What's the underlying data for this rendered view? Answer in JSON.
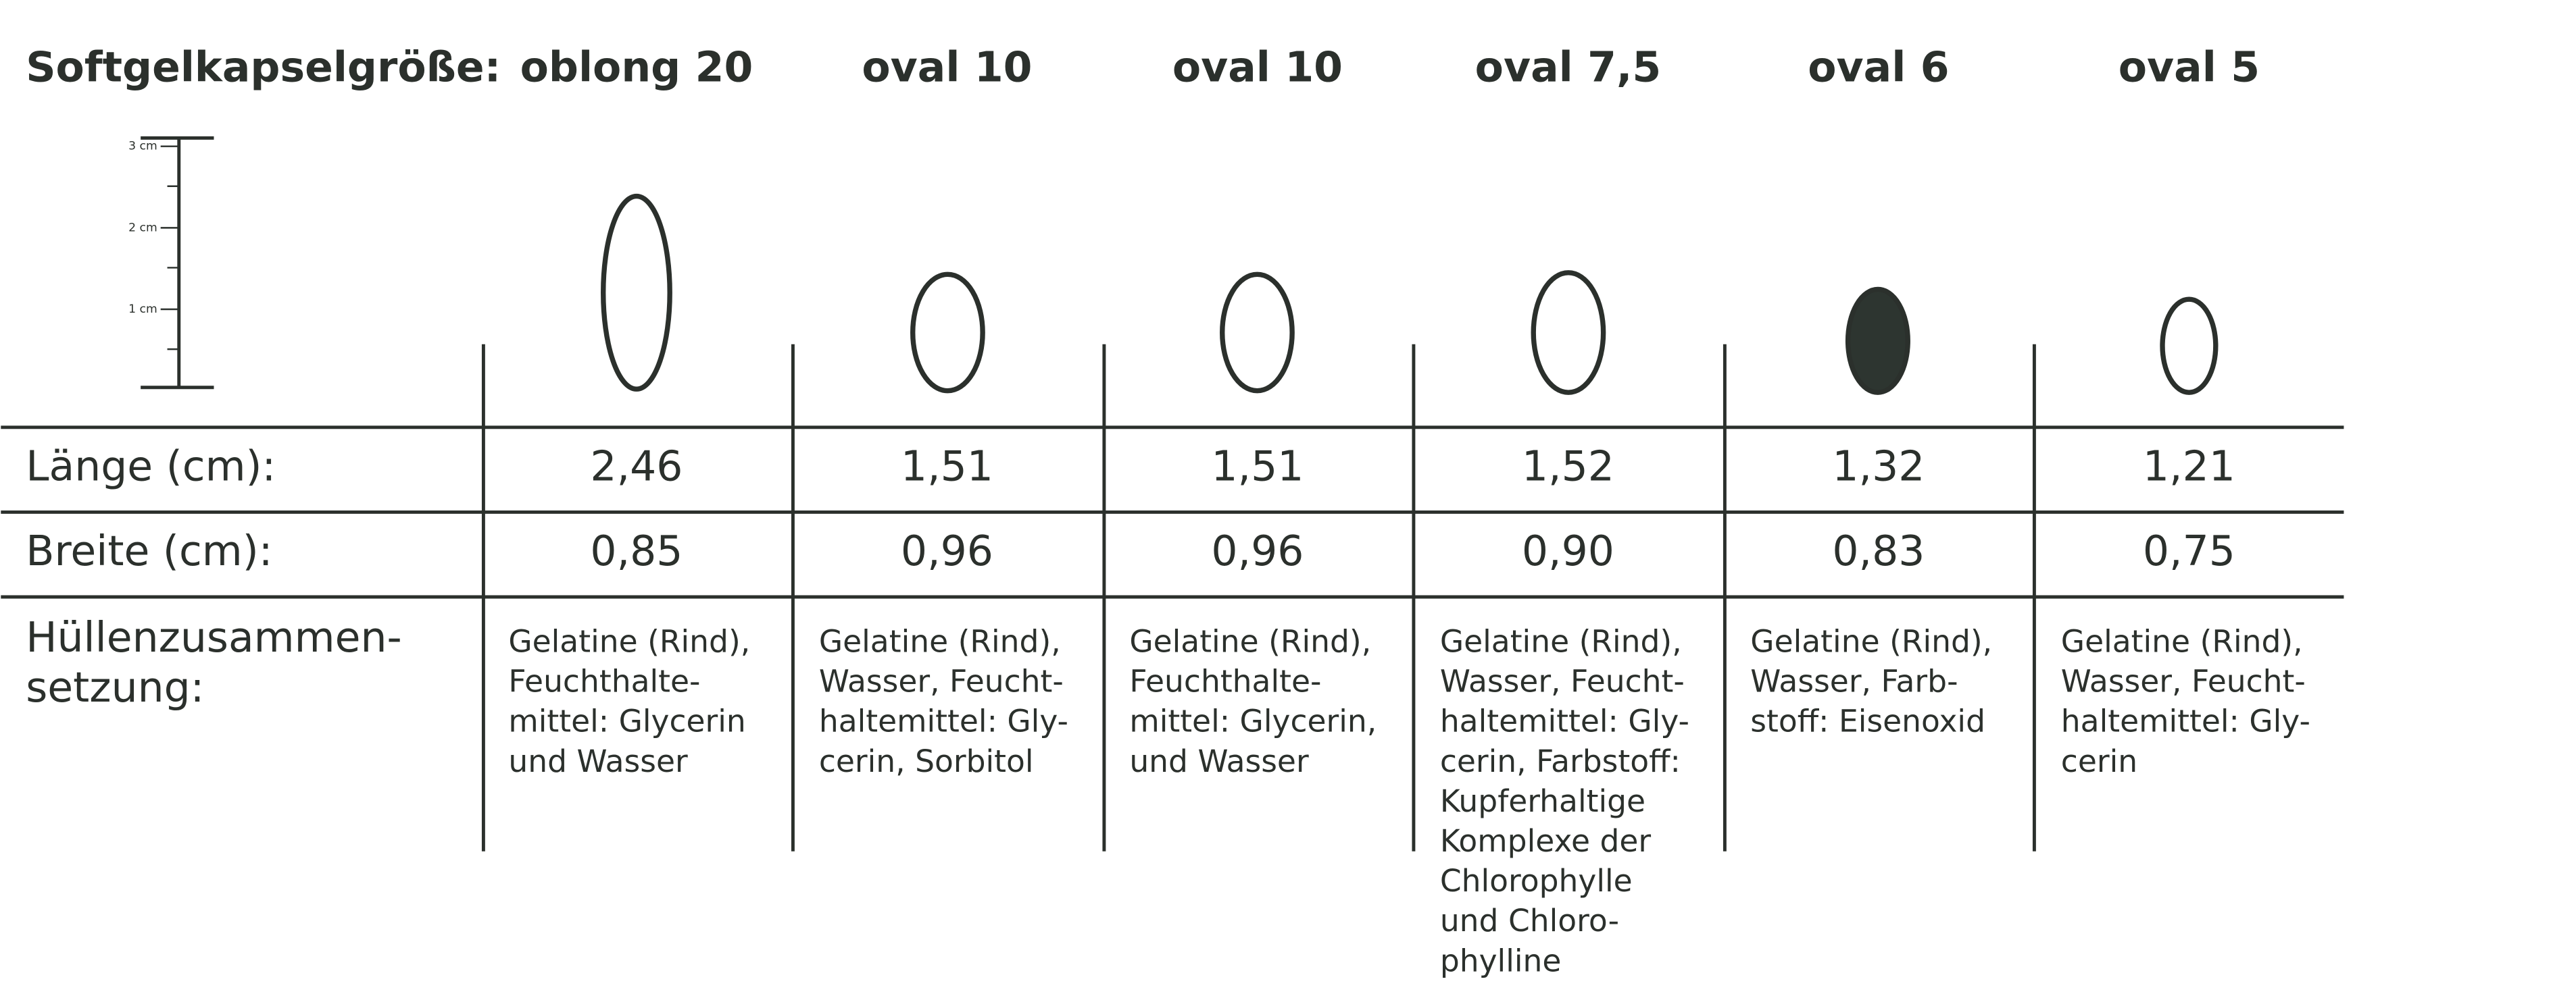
{
  "header": {
    "title": "Softgelkapselgröße:"
  },
  "scale": {
    "ticks": [
      "3 cm",
      "2 cm",
      "1 cm"
    ]
  },
  "table": {
    "columns": [
      "oblong 20",
      "oval 10",
      "oval 10",
      "oval 7,5",
      "oval 6",
      "oval 5"
    ],
    "row_labels": {
      "length": "Länge (cm):",
      "width": "Breite (cm):",
      "composition": [
        "Hüllenzusammen-",
        "setzung:"
      ]
    },
    "length": [
      "2,46",
      "1,51",
      "1,51",
      "1,52",
      "1,32",
      "1,21"
    ],
    "width": [
      "0,85",
      "0,96",
      "0,96",
      "0,90",
      "0,83",
      "0,75"
    ],
    "composition": [
      [
        "Gelatine (Rind),",
        "Feuchthalte-",
        "mittel: Glycerin",
        "und Wasser"
      ],
      [
        "Gelatine (Rind),",
        "Wasser, Feucht-",
        "haltemittel: Gly-",
        "cerin, Sorbitol"
      ],
      [
        "Gelatine (Rind),",
        "Feuchthalte-",
        "mittel: Glycerin,",
        "und Wasser"
      ],
      [
        "Gelatine (Rind),",
        "Wasser, Feucht-",
        "haltemittel: Gly-",
        "cerin, Farbstoff:",
        "Kupferhaltige",
        "Komplexe der",
        "Chlorophylle",
        "und Chloro-",
        "phylline"
      ],
      [
        "Gelatine (Rind),",
        "Wasser, Farb-",
        "stoff: Eisenoxid"
      ],
      [
        "Gelatine (Rind),",
        "Wasser, Feucht-",
        "haltemittel: Gly-",
        "cerin"
      ]
    ]
  }
}
